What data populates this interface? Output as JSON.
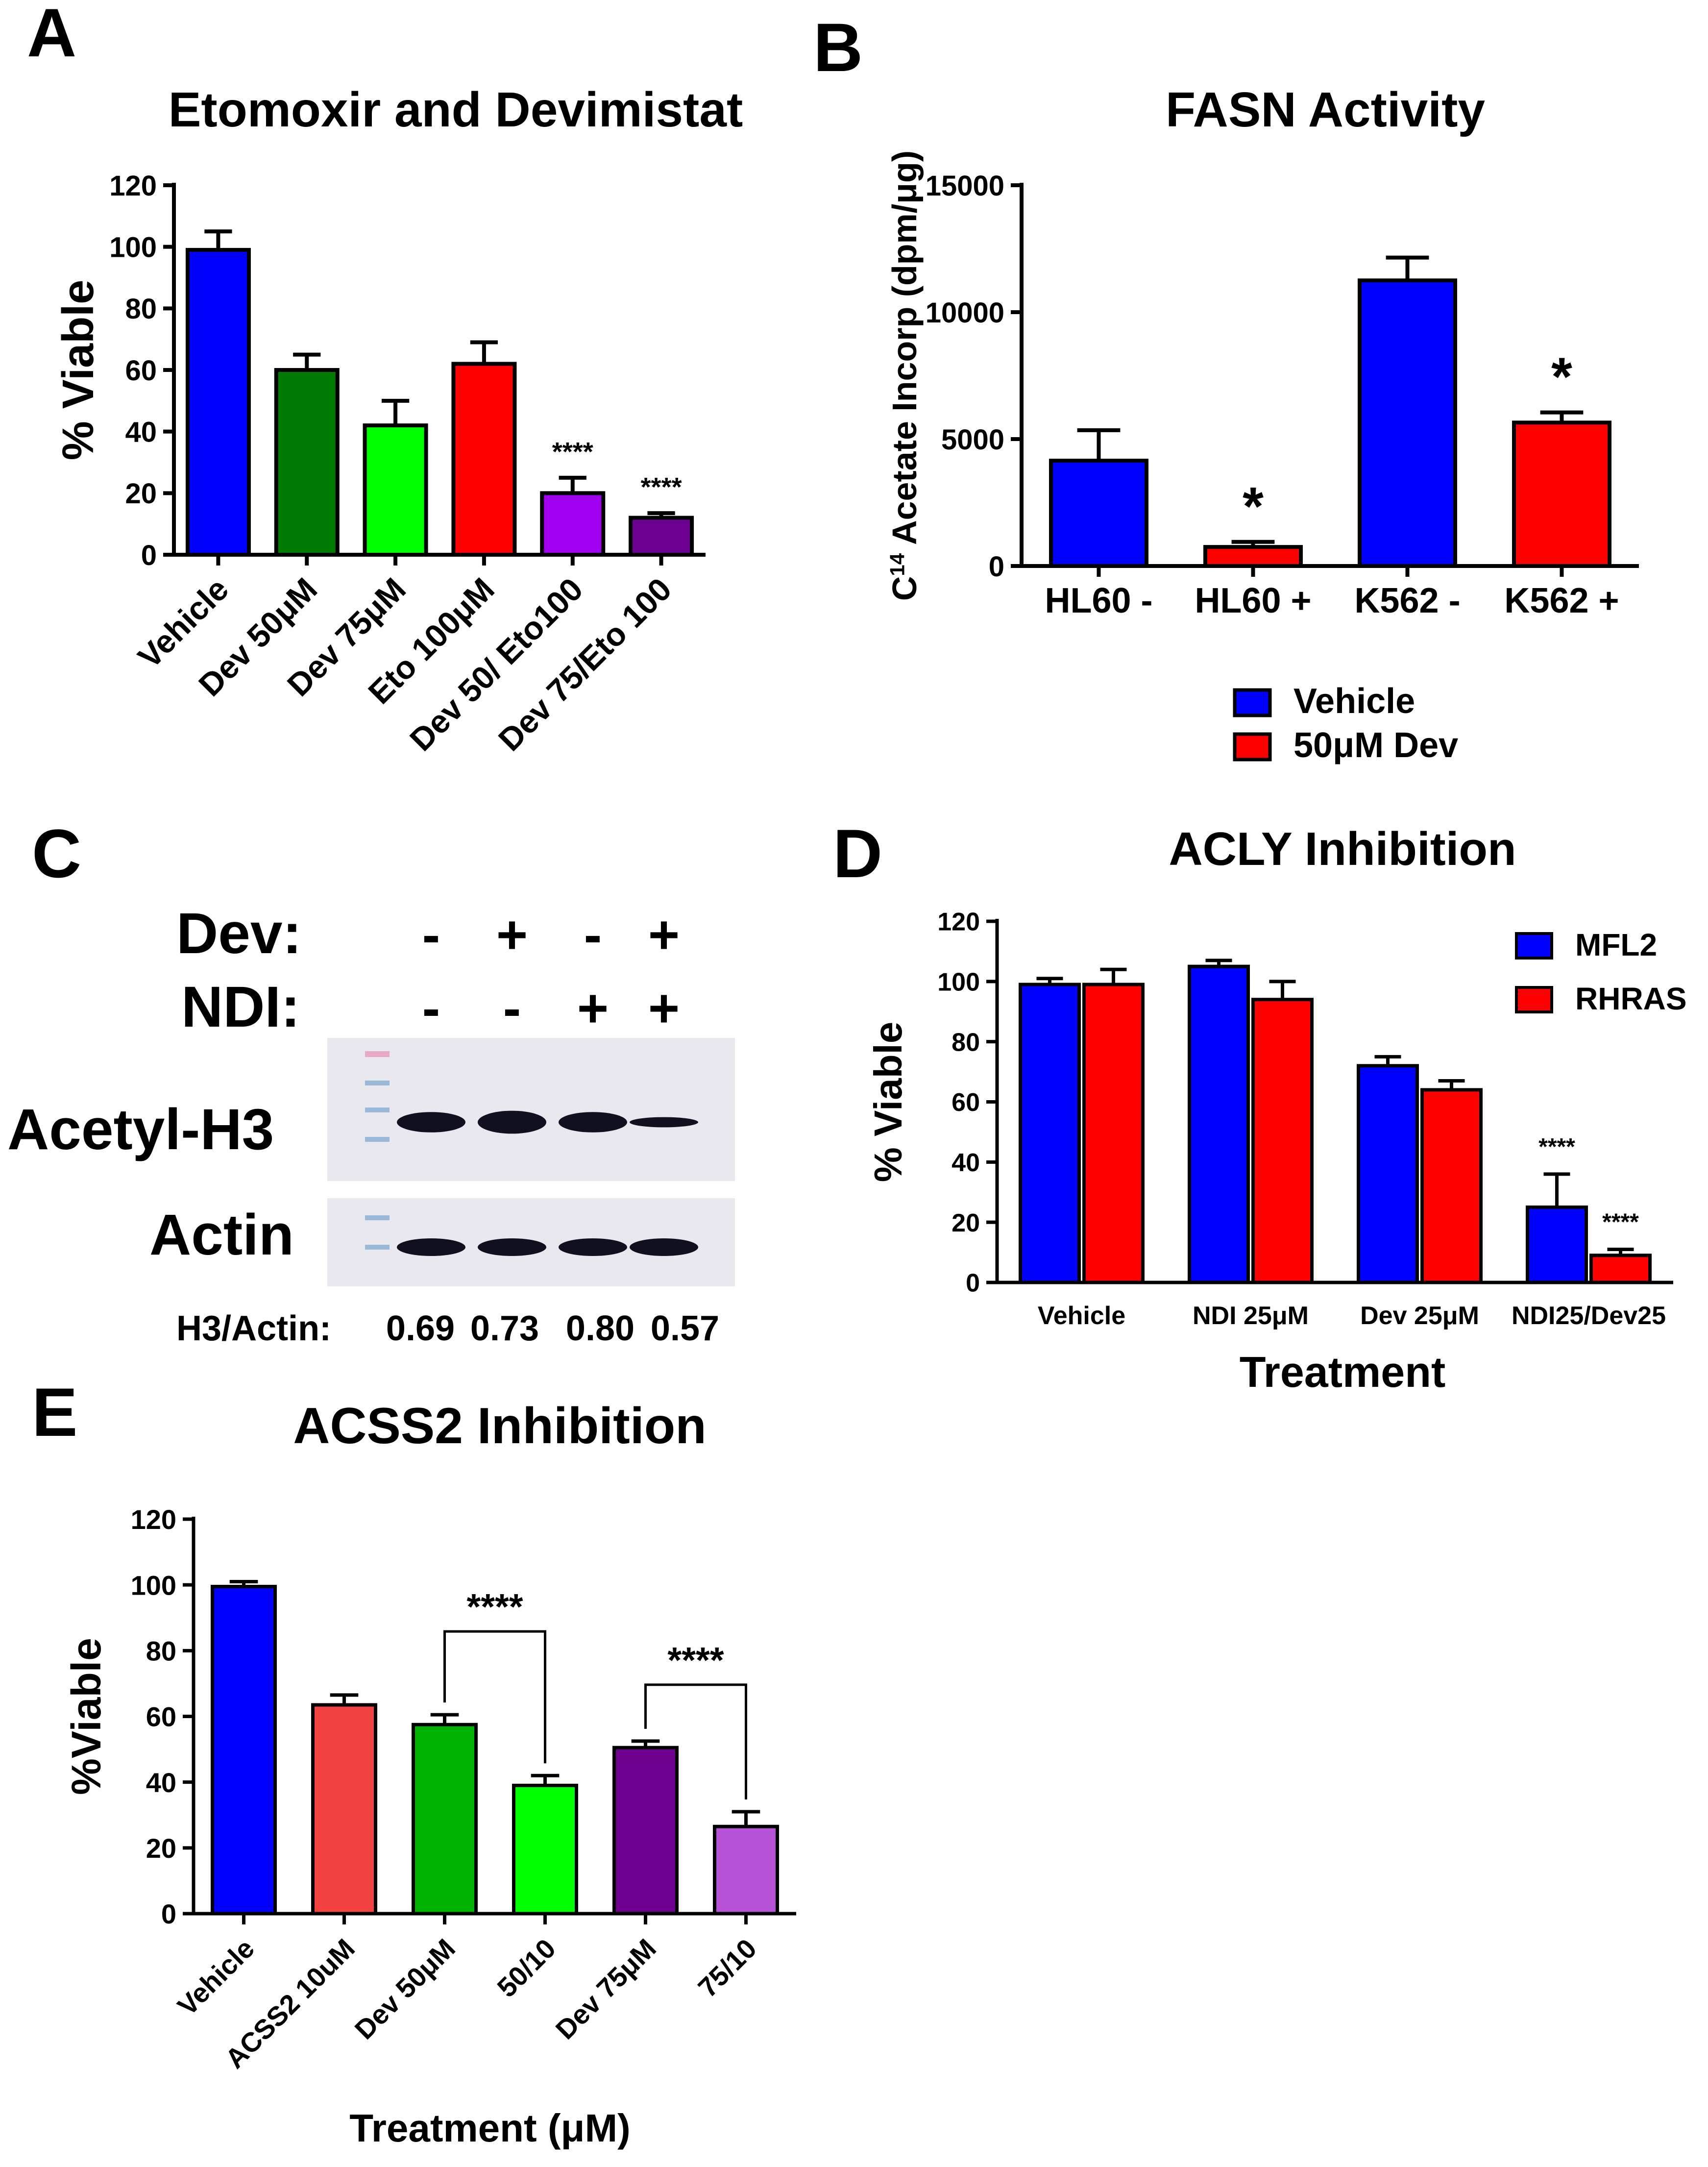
{
  "panel_labels": [
    "A",
    "B",
    "C",
    "D",
    "E"
  ],
  "colors": {
    "blue": "#0000ff",
    "red": "#ff0000",
    "dark_green": "#007a00",
    "light_green": "#00ff00",
    "purple": "#a000f0",
    "dark_purple": "#6e0094",
    "salmon": "#f24242",
    "green_e": "#00b300",
    "light_green_e": "#00ff00",
    "dark_purple_e": "#700090",
    "lavender": "#b552d6"
  },
  "chart_data": [
    {
      "id": "A",
      "type": "bar",
      "title": "Etomoxir and Devimistat",
      "xlabel": "",
      "ylabel": "% Viable",
      "ylim": [
        0,
        120
      ],
      "yticks": [
        "0",
        "20",
        "40",
        "60",
        "80",
        "100",
        "120"
      ],
      "categories": [
        "Vehicle",
        "Dev 50μM",
        "Dev 75μM",
        "Eto 100μM",
        "Dev 50/ Eto100",
        "Dev 75/Eto 100"
      ],
      "values": [
        99,
        60,
        42,
        62,
        20,
        12
      ],
      "errors": [
        6,
        5,
        8,
        7,
        5,
        1.5
      ],
      "colors": [
        "#0000ff",
        "#007a00",
        "#00ff00",
        "#ff0000",
        "#a000f0",
        "#6e0094"
      ],
      "annotations": [
        "",
        "",
        "",
        "",
        "****",
        "****"
      ]
    },
    {
      "id": "B",
      "type": "bar",
      "title": "FASN Activity",
      "xlabel": "",
      "ylabel_sup": "14",
      "ylabel_pre": "C",
      "ylabel_rest": " Acetate Incorp (dpm/μg)",
      "ylim": [
        0,
        15000
      ],
      "yticks": [
        "0",
        "5000",
        "10000",
        "15000"
      ],
      "categories": [
        "HL60 -",
        "HL60 +",
        "K562 -",
        "K562 +"
      ],
      "values": [
        4150,
        750,
        11250,
        5650
      ],
      "errors": [
        1200,
        200,
        900,
        400
      ],
      "colors": [
        "#0000ff",
        "#ff0000",
        "#0000ff",
        "#ff0000"
      ],
      "annotations": [
        "",
        "*",
        "",
        "*"
      ],
      "legend": [
        {
          "label": "Vehicle",
          "color": "#0000ff"
        },
        {
          "label": "50μM Dev",
          "color": "#ff0000"
        }
      ]
    },
    {
      "id": "D",
      "type": "bar",
      "title": "ACLY Inhibition",
      "xlabel": "Treatment",
      "ylabel": "% Viable",
      "ylim": [
        0,
        120
      ],
      "yticks": [
        "0",
        "20",
        "40",
        "60",
        "80",
        "100",
        "120"
      ],
      "categories": [
        "Vehicle",
        "NDI 25μM",
        "Dev 25μM",
        "NDI25/Dev25"
      ],
      "series": [
        {
          "name": "MFL2",
          "color": "#0000ff",
          "values": [
            99,
            105,
            72,
            25
          ],
          "errors": [
            2,
            2,
            3,
            11
          ],
          "annotations": [
            "",
            "",
            "",
            "****"
          ]
        },
        {
          "name": "RHRAS",
          "color": "#ff0000",
          "values": [
            99,
            94,
            64,
            9
          ],
          "errors": [
            5,
            6,
            3,
            2
          ],
          "annotations": [
            "",
            "",
            "",
            "****"
          ]
        }
      ]
    },
    {
      "id": "E",
      "type": "bar",
      "title": "ACSS2 Inhibition",
      "xlabel": "Treatment (μM)",
      "ylabel": "%Viable",
      "ylim": [
        0,
        120
      ],
      "yticks": [
        "0",
        "20",
        "40",
        "60",
        "80",
        "100",
        "120"
      ],
      "categories": [
        "Vehicle",
        "ACSS2 10uM",
        "Dev 50μM",
        "50/10",
        "Dev 75μM",
        "75/10"
      ],
      "values": [
        99.5,
        63.5,
        57.5,
        39,
        50.5,
        26.5
      ],
      "errors": [
        1.5,
        3,
        3,
        3,
        2,
        4.5
      ],
      "colors": [
        "#0000ff",
        "#f24242",
        "#00b300",
        "#00ff00",
        "#700090",
        "#b552d6"
      ],
      "brackets": [
        {
          "from": 2,
          "to": 3,
          "label": "****"
        },
        {
          "from": 4,
          "to": 5,
          "label": "****"
        }
      ]
    }
  ],
  "blot": {
    "row_dev_label": "Dev:",
    "row_ndi_label": "NDI:",
    "dev_marks": [
      "-",
      "+",
      "-",
      "+"
    ],
    "ndi_marks": [
      "-",
      "-",
      "+",
      "+"
    ],
    "band1_label": "Acetyl-H3",
    "band2_label": "Actin",
    "ratio_label": "H3/Actin:",
    "ratios": [
      "0.69",
      "0.73",
      "0.80",
      "0.57"
    ]
  }
}
